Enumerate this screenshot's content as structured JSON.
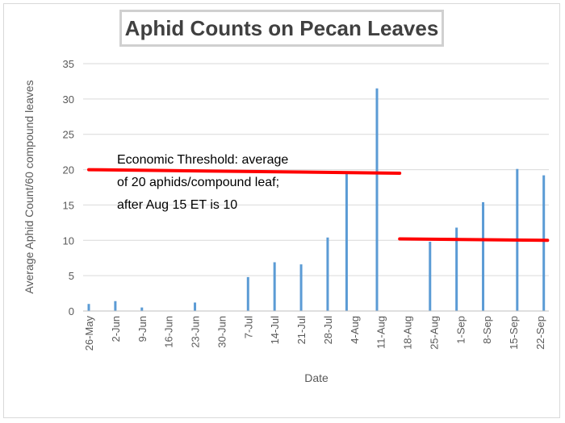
{
  "chart_data": {
    "type": "bar",
    "title": "Aphid Counts on Pecan Leaves",
    "xlabel": "Date",
    "ylabel": "Average Aphid Count/60 compound leaves",
    "ylim": [
      0,
      35
    ],
    "yticks": [
      0,
      5,
      10,
      15,
      20,
      25,
      30,
      35
    ],
    "grid": true,
    "categories": [
      "26-May",
      "2-Jun",
      "9-Jun",
      "16-Jun",
      "23-Jun",
      "30-Jun",
      "7-Jul",
      "14-Jul",
      "21-Jul",
      "28-Jul",
      "4-Aug",
      "11-Aug",
      "18-Aug",
      "25-Aug",
      "1-Sep",
      "8-Sep",
      "15-Sep",
      "22-Sep"
    ],
    "series": [
      {
        "name": "Average Aphid Count",
        "color": "#5b9bd5",
        "points": [
          {
            "day": 0,
            "value": 1.0
          },
          {
            "day": 7,
            "value": 1.4
          },
          {
            "day": 14,
            "value": 0.5
          },
          {
            "day": 28,
            "value": 1.2
          },
          {
            "day": 42,
            "value": 4.8
          },
          {
            "day": 49,
            "value": 6.9
          },
          {
            "day": 56,
            "value": 6.6
          },
          {
            "day": 63,
            "value": 10.4
          },
          {
            "day": 68,
            "value": 19.6
          },
          {
            "day": 76,
            "value": 31.5
          },
          {
            "day": 90,
            "value": 9.8
          },
          {
            "day": 97,
            "value": 11.8
          },
          {
            "day": 104,
            "value": 15.4
          },
          {
            "day": 113,
            "value": 20.1
          },
          {
            "day": 120,
            "value": 19.2
          }
        ]
      }
    ],
    "threshold_lines": [
      {
        "from_day": 0,
        "to_day": 82,
        "y_start": 20.0,
        "y_end": 19.5,
        "color": "#ff0000"
      },
      {
        "from_day": 82,
        "to_day": 121,
        "y_start": 10.2,
        "y_end": 10.0,
        "color": "#ff0000"
      }
    ],
    "annotation": {
      "lines": [
        "Economic Threshold: average",
        "of 20 aphids/compound leaf;",
        "after Aug 15 ET is 10"
      ]
    }
  }
}
